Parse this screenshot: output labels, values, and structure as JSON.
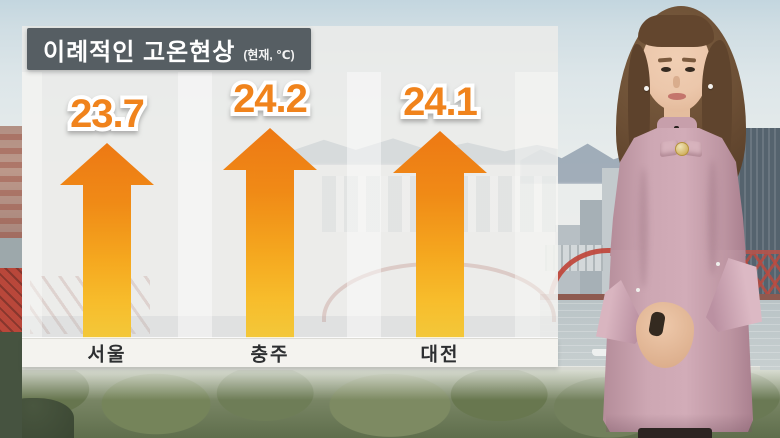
{
  "title_box": {
    "title": "이례적인 고온현상",
    "unit": "(현재, ℃)"
  },
  "stations": [
    {
      "name": "서울",
      "value": "23.7"
    },
    {
      "name": "충주",
      "value": "24.2"
    },
    {
      "name": "대전",
      "value": "24.1"
    }
  ],
  "chart_data": {
    "type": "bar",
    "title": "이례적인 고온현상",
    "subtitle": "(현재, ℃)",
    "unit": "°C",
    "categories": [
      "서울",
      "충주",
      "대전"
    ],
    "values": [
      23.7,
      24.2,
      24.1
    ],
    "value_labels": [
      "23.7",
      "24.2",
      "24.1"
    ],
    "legend_position": "none",
    "grid": false,
    "style": "upward orange gradient arrows on frosted white overlay, city labels in light bar at base",
    "value_label_color": "#f0831c",
    "arrow_gradient_top": "#ed7914",
    "arrow_gradient_bottom": "#f3c83a"
  },
  "colors": {
    "title_box_bg": "#565e63",
    "title_text": "#ffffff",
    "label_bar_bg": "#f4f3ef",
    "label_text": "#2d2f31",
    "bridge_red": "#c0463a",
    "presenter_dress_pink": "#cda7b3"
  }
}
